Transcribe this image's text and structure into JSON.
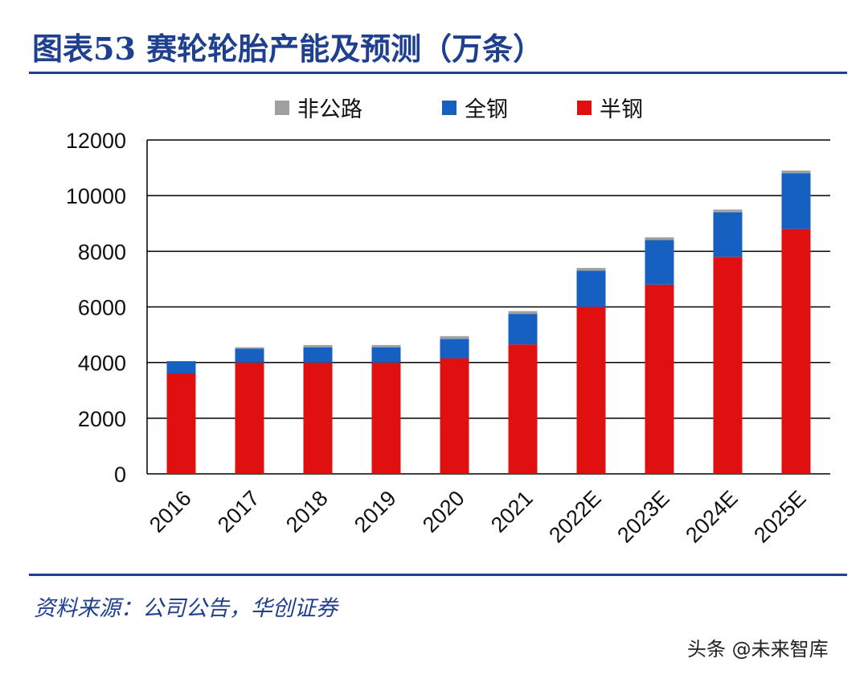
{
  "title": "图表53  赛轮轮胎产能及预测（万条）",
  "source": "资料来源：公司公告，华创证券",
  "watermark": "头条 @未来智库",
  "colors": {
    "semi_steel": "#e01010",
    "all_steel": "#1560c0",
    "off_road": "#a0a0a0",
    "accent": "#1f3f8f"
  },
  "chart_data": {
    "type": "bar",
    "stacked": true,
    "categories": [
      "2016",
      "2017",
      "2018",
      "2019",
      "2020",
      "2021",
      "2022E",
      "2023E",
      "2024E",
      "2025E"
    ],
    "series": [
      {
        "name": "半钢",
        "values": [
          3600,
          4000,
          4000,
          4000,
          4150,
          4650,
          6000,
          6800,
          7800,
          8800
        ]
      },
      {
        "name": "全钢",
        "values": [
          450,
          500,
          550,
          550,
          700,
          1100,
          1300,
          1600,
          1600,
          2000
        ]
      },
      {
        "name": "非公路",
        "values": [
          0,
          50,
          80,
          80,
          100,
          100,
          100,
          100,
          100,
          100
        ]
      }
    ],
    "legend_order": [
      "非公路",
      "全钢",
      "半钢"
    ],
    "yticks": [
      "0",
      "2000",
      "4000",
      "6000",
      "8000",
      "10000",
      "12000"
    ],
    "ylim": [
      0,
      12000
    ],
    "grid": true,
    "legend_position": "top"
  }
}
